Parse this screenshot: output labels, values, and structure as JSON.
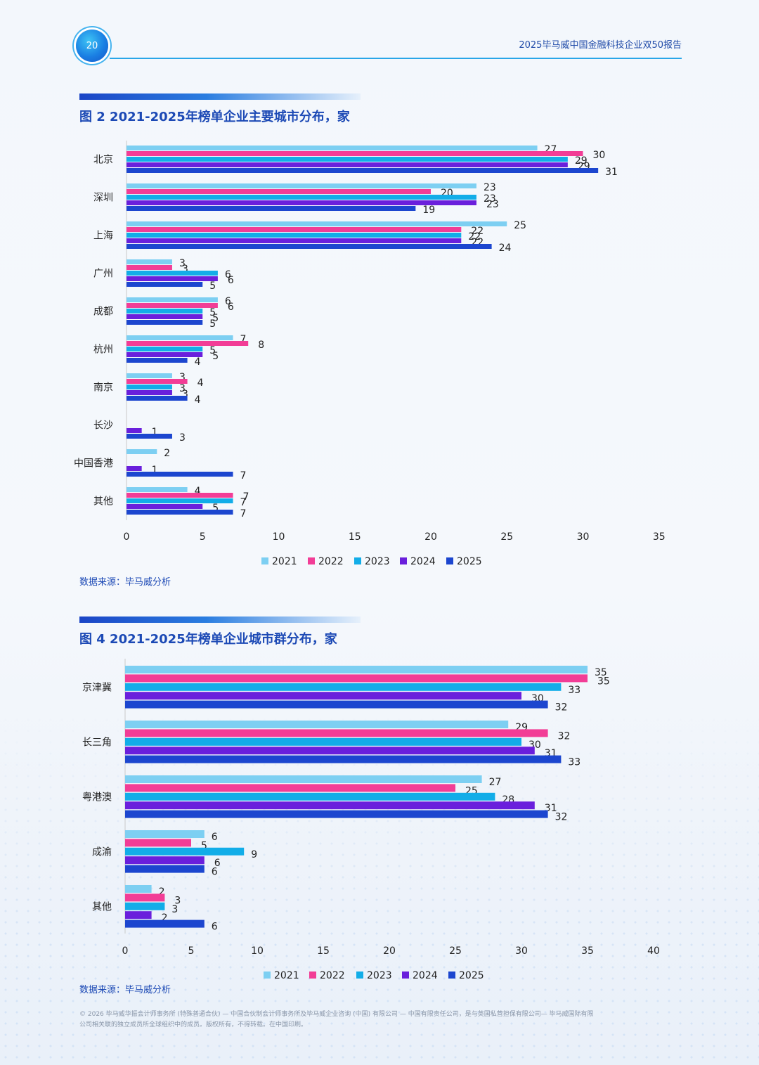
{
  "header": {
    "page_number": "20",
    "report_title": "2025毕马威中国金融科技企业双50报告"
  },
  "chart_data": [
    {
      "type": "bar",
      "orientation": "horizontal",
      "title": "图 2 2021-2025年榜单企业主要城市分布，家",
      "categories": [
        "北京",
        "深圳",
        "上海",
        "广州",
        "成都",
        "杭州",
        "南京",
        "长沙",
        "中国香港",
        "其他"
      ],
      "series": [
        {
          "name": "2021",
          "color": "#7dcff2",
          "values": [
            27,
            23,
            25,
            3,
            6,
            7,
            3,
            null,
            2,
            4
          ]
        },
        {
          "name": "2022",
          "color": "#f23d96",
          "values": [
            30,
            20,
            22,
            3,
            6,
            8,
            4,
            null,
            null,
            7
          ]
        },
        {
          "name": "2023",
          "color": "#12ade8",
          "values": [
            29,
            23,
            22,
            6,
            5,
            5,
            3,
            null,
            null,
            7
          ]
        },
        {
          "name": "2024",
          "color": "#6a1fdc",
          "values": [
            29,
            23,
            22,
            6,
            5,
            5,
            3,
            1,
            1,
            5
          ]
        },
        {
          "name": "2025",
          "color": "#1c46cf",
          "values": [
            31,
            19,
            24,
            5,
            5,
            4,
            4,
            3,
            7,
            7
          ]
        }
      ],
      "xticks": [
        "0",
        "5",
        "10",
        "15",
        "20",
        "25",
        "30",
        "35"
      ],
      "xlim": [
        0,
        35
      ],
      "source": "数据来源：毕马威分析"
    },
    {
      "type": "bar",
      "orientation": "horizontal",
      "title": "图 4 2021-2025年榜单企业城市群分布，家",
      "categories": [
        "京津冀",
        "长三角",
        "粤港澳",
        "成渝",
        "其他"
      ],
      "series": [
        {
          "name": "2021",
          "color": "#7dcff2",
          "values": [
            35,
            29,
            27,
            6,
            2
          ]
        },
        {
          "name": "2022",
          "color": "#f23d96",
          "values": [
            35,
            32,
            25,
            5,
            3
          ]
        },
        {
          "name": "2023",
          "color": "#12ade8",
          "values": [
            33,
            30,
            28,
            9,
            3
          ]
        },
        {
          "name": "2024",
          "color": "#6a1fdc",
          "values": [
            30,
            31,
            31,
            6,
            2
          ]
        },
        {
          "name": "2025",
          "color": "#1c46cf",
          "values": [
            32,
            33,
            32,
            6,
            6
          ]
        }
      ],
      "xticks": [
        "0",
        "5",
        "10",
        "15",
        "20",
        "25",
        "30",
        "35",
        "40"
      ],
      "xlim": [
        0,
        40
      ],
      "source": "数据来源：毕马威分析"
    }
  ],
  "footer": {
    "line1": "© 2026 毕马威华振会计师事务所 (特殊普通合伙) — 中国合伙制会计师事务所及毕马威企业咨询 (中国) 有限公司 — 中国有限责任公司，是与英国私营担保有限公司— 毕马威国际有限",
    "line2": "公司相关联的独立成员所全球组织中的成员。版权所有，不得转载。在中国印刷。"
  }
}
